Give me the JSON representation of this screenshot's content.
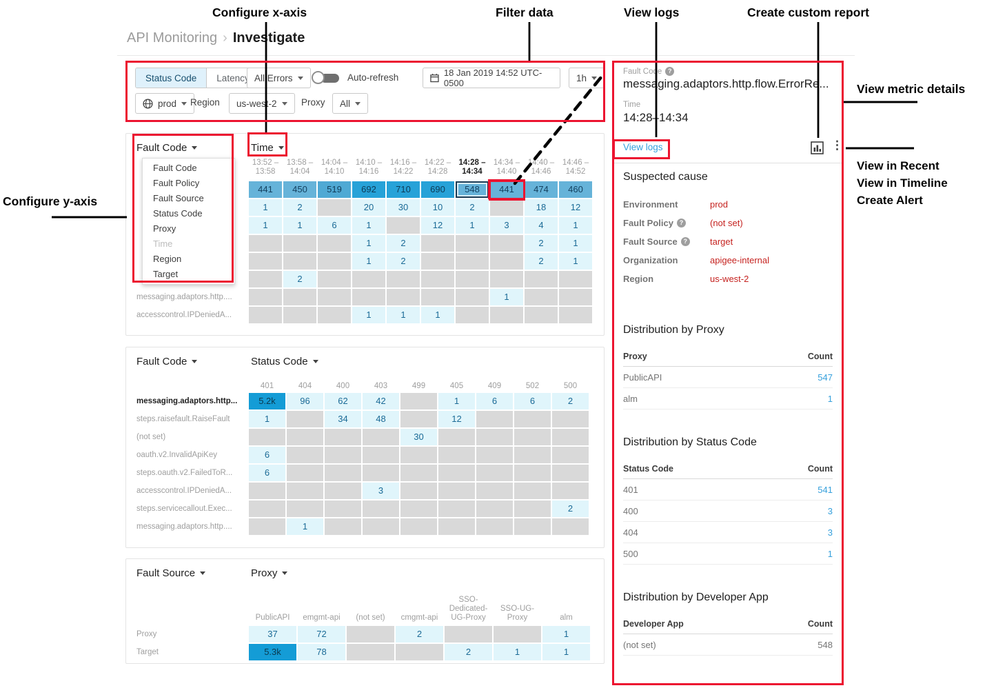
{
  "annotations": {
    "configure_x_axis": "Configure x-axis",
    "filter_data": "Filter data",
    "view_logs": "View logs",
    "create_custom_report": "Create custom report",
    "view_metric_details": "View metric details",
    "view_in_recent": "View in Recent",
    "view_in_timeline": "View in Timeline",
    "create_alert": "Create Alert",
    "configure_y_axis": "Configure y-axis"
  },
  "breadcrumb": {
    "parent": "API Monitoring",
    "separator": "›",
    "current": "Investigate"
  },
  "toolbar": {
    "tabs": [
      {
        "label": "Status Code",
        "selected": true
      },
      {
        "label": "Latency",
        "selected": false
      }
    ],
    "errors_dropdown": "All Errors",
    "auto_refresh_label": "Auto-refresh",
    "datetime": "18 Jan 2019 14:52 UTC-0500",
    "interval": "1h",
    "env_value": "prod",
    "region_label": "Region",
    "region_value": "us-west-2",
    "proxy_label": "Proxy",
    "proxy_value": "All"
  },
  "matrices": [
    {
      "id": "m1",
      "y_axis": "Fault Code",
      "x_axis": "Time",
      "menu": [
        {
          "label": "Fault Code"
        },
        {
          "label": "Fault Policy"
        },
        {
          "label": "Fault Source"
        },
        {
          "label": "Status Code"
        },
        {
          "label": "Proxy"
        },
        {
          "label": "Time",
          "disabled": true
        },
        {
          "label": "Region"
        },
        {
          "label": "Target"
        }
      ],
      "cols": [
        {
          "lines": [
            "13:52 –",
            "13:58"
          ]
        },
        {
          "lines": [
            "13:58 –",
            "14:04"
          ]
        },
        {
          "lines": [
            "14:04 –",
            "14:10"
          ]
        },
        {
          "lines": [
            "14:10 –",
            "14:16"
          ]
        },
        {
          "lines": [
            "14:16 –",
            "14:22"
          ]
        },
        {
          "lines": [
            "14:22 –",
            "14:28"
          ]
        },
        {
          "lines": [
            "14:28 –",
            "14:34"
          ],
          "bold": true
        },
        {
          "lines": [
            "14:34 –",
            "14:40"
          ]
        },
        {
          "lines": [
            "14:40 –",
            "14:46"
          ]
        },
        {
          "lines": [
            "14:46 –",
            "14:52"
          ]
        }
      ],
      "rows": [
        {
          "label": "",
          "cells": [
            "m:441",
            "m:450",
            "m2:519",
            "d:692",
            "d:710",
            "d:690",
            "m:548:sel",
            "m:441:box",
            "m:474",
            "m:460"
          ]
        },
        {
          "label": "",
          "cells": [
            "l:1",
            "l:2",
            "g:",
            "l:20",
            "l:30",
            "l:10",
            "l:2",
            "g:",
            "l:18",
            "l:12"
          ]
        },
        {
          "label": "",
          "cells": [
            "l:1",
            "l:1",
            "l:6",
            "l:1",
            "g:",
            "l:12",
            "l:1",
            "l:3",
            "l:4",
            "l:1"
          ]
        },
        {
          "label": "",
          "cells": [
            "g:",
            "g:",
            "g:",
            "l:1",
            "l:2",
            "g:",
            "g:",
            "g:",
            "l:2",
            "l:1"
          ]
        },
        {
          "label": "",
          "cells": [
            "g:",
            "g:",
            "g:",
            "l:1",
            "l:2",
            "g:",
            "g:",
            "g:",
            "l:2",
            "l:1"
          ]
        },
        {
          "label": "",
          "cells": [
            "g:",
            "l:2",
            "g:",
            "g:",
            "g:",
            "g:",
            "g:",
            "g:",
            "g:",
            "g:"
          ]
        },
        {
          "label": "messaging.adaptors.http....",
          "cells": [
            "g:",
            "g:",
            "g:",
            "g:",
            "g:",
            "g:",
            "g:",
            "l:1",
            "g:",
            "g:"
          ]
        },
        {
          "label": "accesscontrol.IPDeniedA...",
          "cells": [
            "g:",
            "g:",
            "g:",
            "l:1",
            "l:1",
            "l:1",
            "g:",
            "g:",
            "g:",
            "g:"
          ]
        }
      ]
    },
    {
      "id": "m2",
      "y_axis": "Fault Code",
      "x_axis": "Status Code",
      "cols": [
        {
          "lines": [
            "401"
          ]
        },
        {
          "lines": [
            "404"
          ]
        },
        {
          "lines": [
            "400"
          ]
        },
        {
          "lines": [
            "403"
          ]
        },
        {
          "lines": [
            "499"
          ]
        },
        {
          "lines": [
            "405"
          ]
        },
        {
          "lines": [
            "409"
          ]
        },
        {
          "lines": [
            "502"
          ]
        },
        {
          "lines": [
            "500"
          ]
        }
      ],
      "rows": [
        {
          "label": "messaging.adaptors.http...",
          "bold": true,
          "cells": [
            "x:5.2k",
            "l:96",
            "l:62",
            "l:42",
            "g:",
            "l:1",
            "l:6",
            "l:6",
            "l:2"
          ]
        },
        {
          "label": "steps.raisefault.RaiseFault",
          "cells": [
            "l:1",
            "g:",
            "l:34",
            "l:48",
            "g:",
            "l:12",
            "g:",
            "g:",
            "g:"
          ]
        },
        {
          "label": "(not set)",
          "cells": [
            "g:",
            "g:",
            "g:",
            "g:",
            "l:30",
            "g:",
            "g:",
            "g:",
            "g:"
          ]
        },
        {
          "label": "oauth.v2.InvalidApiKey",
          "cells": [
            "l:6",
            "g:",
            "g:",
            "g:",
            "g:",
            "g:",
            "g:",
            "g:",
            "g:"
          ]
        },
        {
          "label": "steps.oauth.v2.FailedToR...",
          "cells": [
            "l:6",
            "g:",
            "g:",
            "g:",
            "g:",
            "g:",
            "g:",
            "g:",
            "g:"
          ]
        },
        {
          "label": "accesscontrol.IPDeniedA...",
          "cells": [
            "g:",
            "g:",
            "g:",
            "l:3",
            "g:",
            "g:",
            "g:",
            "g:",
            "g:"
          ]
        },
        {
          "label": "steps.servicecallout.Exec...",
          "cells": [
            "g:",
            "g:",
            "g:",
            "g:",
            "g:",
            "g:",
            "g:",
            "g:",
            "l:2"
          ]
        },
        {
          "label": "messaging.adaptors.http....",
          "cells": [
            "g:",
            "l:1",
            "g:",
            "g:",
            "g:",
            "g:",
            "g:",
            "g:",
            "g:"
          ]
        }
      ]
    },
    {
      "id": "m3",
      "y_axis": "Fault Source",
      "x_axis": "Proxy",
      "cols": [
        {
          "lines": [
            "PublicAPI"
          ]
        },
        {
          "lines": [
            "emgmt-api"
          ]
        },
        {
          "lines": [
            "(not set)"
          ]
        },
        {
          "lines": [
            "cmgmt-api"
          ]
        },
        {
          "lines": [
            "SSO-",
            "Dedicated-",
            "UG-Proxy"
          ]
        },
        {
          "lines": [
            "SSO-UG-",
            "Proxy"
          ]
        },
        {
          "lines": [
            "alm"
          ]
        }
      ],
      "rows": [
        {
          "label": "Proxy",
          "cells": [
            "l:37",
            "l:72",
            "g:",
            "l:2",
            "g:",
            "g:",
            "l:1"
          ]
        },
        {
          "label": "Target",
          "cells": [
            "x:5.3k",
            "l:78",
            "g:",
            "g:",
            "l:2",
            "l:1",
            "l:1"
          ]
        }
      ]
    }
  ],
  "panel": {
    "fault_code_label": "Fault Code",
    "fault_code_value": "messaging.adaptors.http.flow.ErrorRe...",
    "time_label": "Time",
    "time_value": "14:28–14:34",
    "view_logs": "View logs",
    "suspected": {
      "title": "Suspected cause",
      "rows": [
        {
          "label": "Environment",
          "help": false,
          "value": "prod"
        },
        {
          "label": "Fault Policy",
          "help": true,
          "value": "(not set)"
        },
        {
          "label": "Fault Source",
          "help": true,
          "value": "target"
        },
        {
          "label": "Organization",
          "help": false,
          "value": "apigee-internal"
        },
        {
          "label": "Region",
          "help": false,
          "value": "us-west-2"
        }
      ]
    },
    "distributions": [
      {
        "title": "Distribution by Proxy",
        "col1": "Proxy",
        "col2": "Count",
        "rows": [
          {
            "label": "PublicAPI",
            "count": "547",
            "link": true
          },
          {
            "label": "alm",
            "count": "1",
            "link": true
          }
        ]
      },
      {
        "title": "Distribution by Status Code",
        "col1": "Status Code",
        "col2": "Count",
        "rows": [
          {
            "label": "401",
            "count": "541",
            "link": true
          },
          {
            "label": "400",
            "count": "3",
            "link": true
          },
          {
            "label": "404",
            "count": "3",
            "link": true
          },
          {
            "label": "500",
            "count": "1",
            "link": true
          }
        ]
      },
      {
        "title": "Distribution by Developer App",
        "col1": "Developer App",
        "col2": "Count",
        "rows": [
          {
            "label": "(not set)",
            "count": "548",
            "link": false
          }
        ]
      }
    ]
  },
  "icons": {
    "more_vertical": "⋮",
    "help_glyph": "?"
  }
}
